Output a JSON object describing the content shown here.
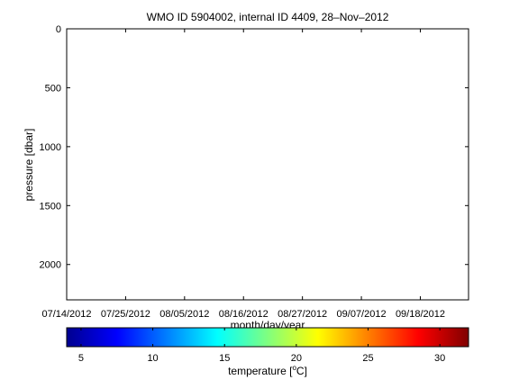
{
  "chart_data": {
    "type": "scatter",
    "title": "WMO ID 5904002, internal ID 4409, 28–Nov–2012",
    "xlabel": "month/day/year",
    "ylabel": "pressure [dbar]",
    "x_ticks": [
      "07/14/2012",
      "07/25/2012",
      "08/05/2012",
      "08/16/2012",
      "08/27/2012",
      "09/07/2012",
      "09/18/2012"
    ],
    "xlim": [
      "2012-07-14",
      "2012-09-27"
    ],
    "y_ticks": [
      0,
      500,
      1000,
      1500,
      2000
    ],
    "ylim": [
      0,
      2300
    ],
    "y_reversed": true,
    "series": [],
    "grid": false,
    "colorbar": {
      "label": "temperature [°C]",
      "ticks": [
        5,
        10,
        15,
        20,
        25,
        30
      ],
      "range": [
        4,
        32
      ],
      "colormap": "jet",
      "orientation": "horizontal"
    }
  }
}
